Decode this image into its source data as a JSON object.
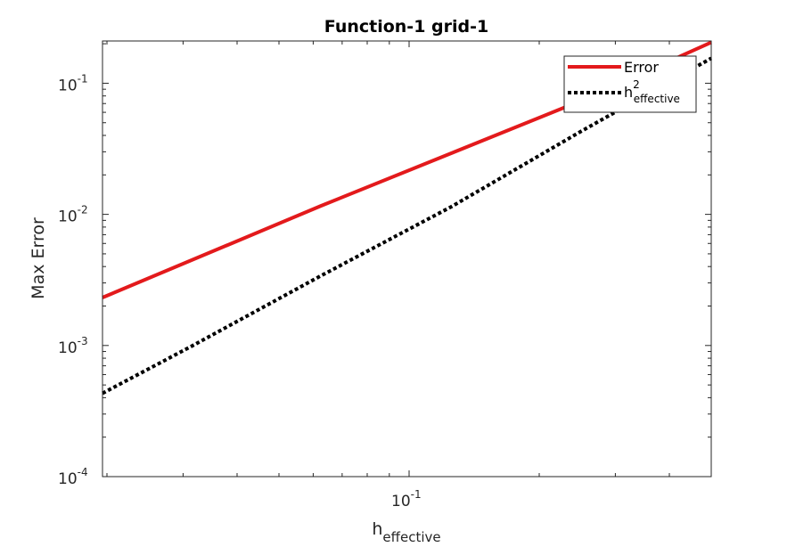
{
  "chart_data": {
    "type": "line",
    "title": "Function-1 grid-1",
    "xlabel": "h",
    "xlabel_sub": "effective",
    "ylabel": "Max Error",
    "xscale": "log",
    "yscale": "log",
    "xlim": [
      0.01953,
      0.5
    ],
    "ylim": [
      0.0001,
      0.21
    ],
    "x_ticks": [
      {
        "base": "10",
        "exp": "-1",
        "value": 0.1
      }
    ],
    "y_ticks": [
      {
        "base": "10",
        "exp": "-1",
        "value": 0.1
      },
      {
        "base": "10",
        "exp": "-2",
        "value": 0.01
      },
      {
        "base": "10",
        "exp": "-3",
        "value": 0.001
      },
      {
        "base": "10",
        "exp": "-4",
        "value": 0.0001
      }
    ],
    "legend_position": "top-right",
    "series": [
      {
        "name": "Error",
        "color": "#e31a1c",
        "style": "solid",
        "x": [
          0.01953,
          0.0625,
          0.125,
          0.25,
          0.5
        ],
        "y": [
          0.00232,
          0.0116,
          0.0292,
          0.0735,
          0.205
        ]
      },
      {
        "name": "h",
        "name_sup": "2",
        "name_sub": "effective",
        "color": "#000000",
        "style": "dotted",
        "x": [
          0.01953,
          0.03125,
          0.0625,
          0.125,
          0.25,
          0.5
        ],
        "y": [
          0.000432,
          0.00098,
          0.0034,
          0.0114,
          0.043,
          0.155
        ]
      }
    ],
    "grid": false
  }
}
